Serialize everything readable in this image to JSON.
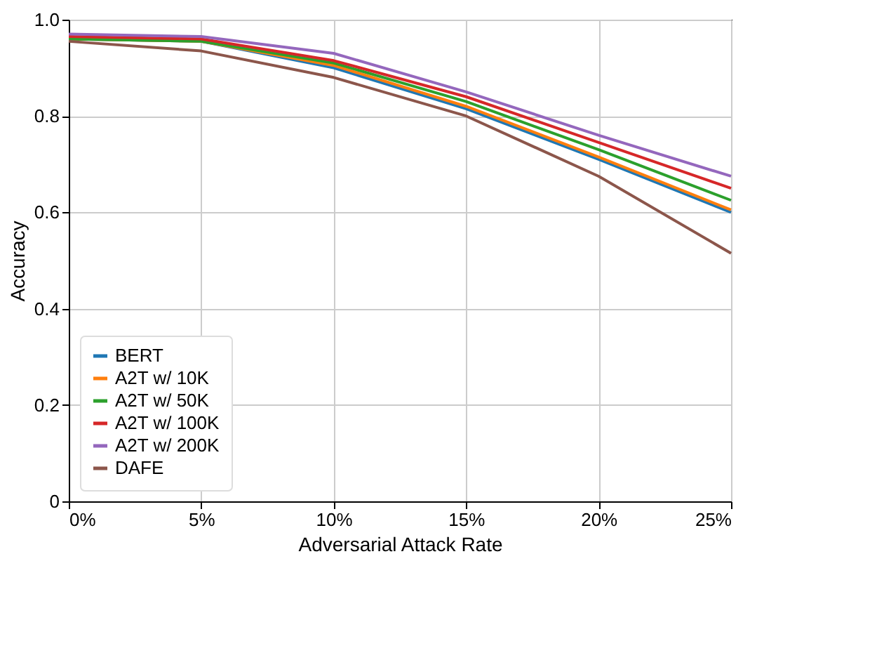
{
  "chart_data": {
    "type": "line",
    "xlabel": "Adversarial Attack Rate",
    "ylabel": "Accuracy",
    "x": [
      0,
      5,
      10,
      15,
      20,
      25
    ],
    "series": [
      {
        "name": "BERT",
        "color": "#1f77b4",
        "values": [
          0.96,
          0.955,
          0.9,
          0.815,
          0.71,
          0.6
        ]
      },
      {
        "name": "A2T w/ 10K",
        "color": "#ff7f0e",
        "values": [
          0.96,
          0.955,
          0.905,
          0.82,
          0.715,
          0.605
        ]
      },
      {
        "name": "A2T w/ 50K",
        "color": "#2ca02c",
        "values": [
          0.96,
          0.955,
          0.91,
          0.83,
          0.73,
          0.625
        ]
      },
      {
        "name": "A2T w/ 100K",
        "color": "#d62728",
        "values": [
          0.965,
          0.96,
          0.915,
          0.84,
          0.745,
          0.65
        ]
      },
      {
        "name": "A2T w/ 200K",
        "color": "#9467bd",
        "values": [
          0.97,
          0.965,
          0.93,
          0.85,
          0.76,
          0.675
        ]
      },
      {
        "name": "DAFE",
        "color": "#8c564b",
        "values": [
          0.955,
          0.935,
          0.88,
          0.8,
          0.675,
          0.515
        ]
      }
    ],
    "xlim": [
      0,
      25
    ],
    "xticks": [
      {
        "value": 0,
        "label": "0%"
      },
      {
        "value": 5,
        "label": "5%"
      },
      {
        "value": 10,
        "label": "10%"
      },
      {
        "value": 15,
        "label": "15%"
      },
      {
        "value": 20,
        "label": "20%"
      },
      {
        "value": 25,
        "label": "25%"
      }
    ],
    "ylim": [
      0,
      1
    ],
    "yticks": [
      0,
      0.2,
      0.4,
      0.6,
      0.8,
      {
        "value": 1,
        "label": "1.0"
      }
    ],
    "grid": true,
    "legend": "bottom left",
    "marker": "none",
    "line_style": "solid"
  }
}
